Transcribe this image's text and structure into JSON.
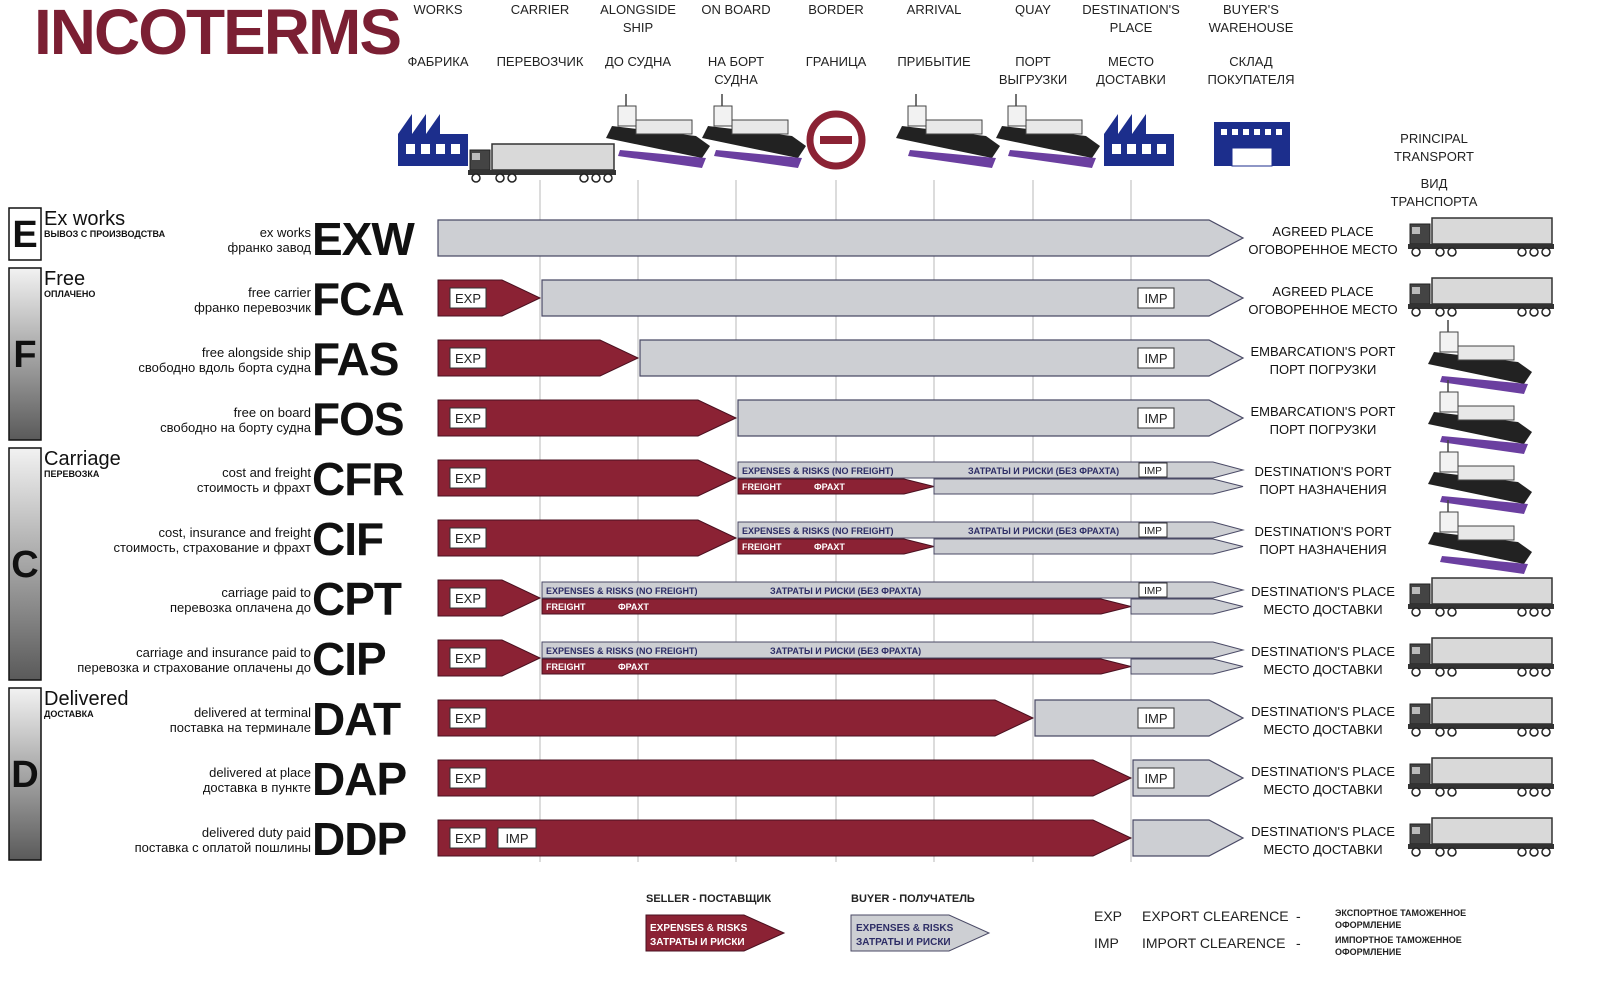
{
  "title": "INCOTERMS",
  "colors": {
    "seller": "#8b2234",
    "buyer": "#cdcfd3",
    "icon_blue": "#1c2e8c",
    "title": "#7b1f33"
  },
  "columns": [
    {
      "en": "WORKS",
      "ru": "ФАБРИКА",
      "icon": "factory-icon"
    },
    {
      "en": "CARRIER",
      "ru": "ПЕРЕВОЗЧИК",
      "icon": "truck-icon"
    },
    {
      "en": "ALONGSIDE SHIP",
      "ru": "ДО СУДНА",
      "icon": "ship-icon"
    },
    {
      "en": "ON BOARD",
      "ru": "НА БОРТ СУДНА",
      "icon": "ship-icon"
    },
    {
      "en": "BORDER",
      "ru": "ГРАНИЦА",
      "icon": "border-icon"
    },
    {
      "en": "ARRIVAL",
      "ru": "ПРИБЫТИЕ",
      "icon": "ship-icon"
    },
    {
      "en": "QUAY",
      "ru": "ПОРТ ВЫГРУЗКИ",
      "icon": "ship-icon"
    },
    {
      "en": "DESTINATION'S PLACE",
      "ru": "МЕСТО ДОСТАВКИ",
      "icon": "factory-icon"
    },
    {
      "en": "BUYER'S WAREHOUSE",
      "ru": "СКЛАД ПОКУПАТЕЛЯ",
      "icon": "warehouse-icon"
    }
  ],
  "transport_header": {
    "en": "PRINCIPAL TRANSPORT",
    "ru": "ВИД ТРАНСПОРТА"
  },
  "groups": [
    {
      "letter": "E",
      "en": "Ex works",
      "ru": "ВЫВОЗ С ПРОИЗВОДСТВА"
    },
    {
      "letter": "F",
      "en": "Free",
      "ru": "ОПЛАЧЕНО"
    },
    {
      "letter": "C",
      "en": "Carriage",
      "ru": "ПЕРЕВОЗКА"
    },
    {
      "letter": "D",
      "en": "Delivered",
      "ru": "ДОСТАВКА"
    }
  ],
  "terms": [
    {
      "code": "EXW",
      "en": "ex works",
      "ru": "франко завод",
      "seller_to": 0,
      "freight_to": null,
      "exp": false,
      "imp": false,
      "imp_seller": false,
      "place_en": "AGREED PLACE",
      "place_ru": "ОГОВОРЕННОЕ МЕСТО",
      "transport": "truck-icon"
    },
    {
      "code": "FCA",
      "en": "free carrier",
      "ru": "франко перевозчик",
      "seller_to": 1,
      "freight_to": null,
      "exp": true,
      "imp": true,
      "imp_seller": false,
      "place_en": "AGREED PLACE",
      "place_ru": "ОГОВОРЕННОЕ МЕСТО",
      "transport": "truck-icon"
    },
    {
      "code": "FAS",
      "en": "free alongside ship",
      "ru": "свободно вдоль борта судна",
      "seller_to": 2,
      "freight_to": null,
      "exp": true,
      "imp": true,
      "imp_seller": false,
      "place_en": "EMBARCATION'S PORT",
      "place_ru": "ПОРТ ПОГРУЗКИ",
      "transport": "ship-icon"
    },
    {
      "code": "FOS",
      "en": "free on board",
      "ru": "свободно на борту судна",
      "seller_to": 3,
      "freight_to": null,
      "exp": true,
      "imp": true,
      "imp_seller": false,
      "place_en": "EMBARCATION'S PORT",
      "place_ru": "ПОРТ ПОГРУЗКИ",
      "transport": "ship-icon"
    },
    {
      "code": "CFR",
      "en": "cost and freight",
      "ru": "стоимость и фрахт",
      "seller_to": 3,
      "freight_to": 5,
      "exp": true,
      "imp": true,
      "imp_seller": false,
      "place_en": "DESTINATION'S PORT",
      "place_ru": "ПОРТ НАЗНАЧЕНИЯ",
      "transport": "ship-icon"
    },
    {
      "code": "CIF",
      "en": "cost, insurance and freight",
      "ru": "стоимость, страхование и фрахт",
      "seller_to": 3,
      "freight_to": 5,
      "exp": true,
      "imp": true,
      "imp_seller": false,
      "place_en": "DESTINATION'S PORT",
      "place_ru": "ПОРТ НАЗНАЧЕНИЯ",
      "transport": "ship-icon"
    },
    {
      "code": "CPT",
      "en": "carriage paid to",
      "ru": "перевозка оплачена до",
      "seller_to": 1,
      "freight_to": 7,
      "exp": true,
      "imp": true,
      "imp_seller": false,
      "place_en": "DESTINATION'S PLACE",
      "place_ru": "МЕСТО ДОСТАВКИ",
      "transport": "truck-icon"
    },
    {
      "code": "CIP",
      "en": "carriage and insurance paid to",
      "ru": "перевозка и страхование оплачены до",
      "seller_to": 1,
      "freight_to": 7,
      "exp": true,
      "imp": false,
      "imp_seller": false,
      "place_en": "DESTINATION'S PLACE",
      "place_ru": "МЕСТО ДОСТАВКИ",
      "transport": "truck-icon"
    },
    {
      "code": "DAT",
      "en": "delivered at terminal",
      "ru": "поставка на терминале",
      "seller_to": 6,
      "freight_to": null,
      "exp": true,
      "imp": true,
      "imp_seller": false,
      "place_en": "DESTINATION'S PLACE",
      "place_ru": "МЕСТО ДОСТАВКИ",
      "transport": "truck-icon"
    },
    {
      "code": "DAP",
      "en": "delivered at place",
      "ru": "доставка в пункте",
      "seller_to": 7,
      "freight_to": null,
      "exp": true,
      "imp": true,
      "imp_seller": false,
      "place_en": "DESTINATION'S PLACE",
      "place_ru": "МЕСТО ДОСТАВКИ",
      "transport": "truck-icon"
    },
    {
      "code": "DDP",
      "en": "delivered duty paid",
      "ru": "поставка с оплатой пошлины",
      "seller_to": 7,
      "freight_to": null,
      "exp": true,
      "imp": false,
      "imp_seller": true,
      "place_en": "DESTINATION'S PLACE",
      "place_ru": "МЕСТО ДОСТАВКИ",
      "transport": "truck-icon"
    }
  ],
  "badges": {
    "exp": "EXP",
    "imp": "IMP"
  },
  "strip": {
    "expenses_en": "EXPENSES & RISKS (NO FREIGHT)",
    "expenses_ru": "ЗАТРАТЫ И РИСКИ (БЕЗ ФРАХТА)",
    "freight_en": "FREIGHT",
    "freight_ru": "ФРАХТ"
  },
  "legend": {
    "seller_title": "SELLER - ПОСТАВЩИК",
    "buyer_title": "BUYER - ПОЛУЧАТЕЛЬ",
    "box_en": "EXPENSES & RISKS",
    "box_ru": "ЗАТРАТЫ И РИСКИ",
    "abbreviations": [
      {
        "abbr": "EXP",
        "en": "EXPORT CLEARENCE",
        "ru": "ЭКСПОРТНОЕ ТАМОЖЕННОЕ ОФОРМЛЕНИЕ"
      },
      {
        "abbr": "IMP",
        "en": "IMPORT CLEARENCE",
        "ru": "ИМПОРТНОЕ ТАМОЖЕННОЕ ОФОРМЛЕНИЕ"
      }
    ]
  }
}
